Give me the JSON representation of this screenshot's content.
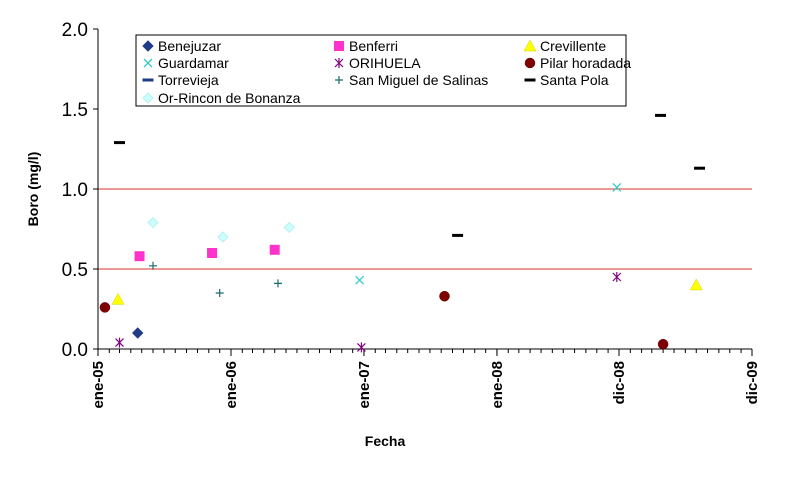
{
  "chart_data": {
    "type": "scatter",
    "title": "",
    "xlabel": "Fecha",
    "ylabel": "Boro (mg/l)",
    "x_axis_type": "date",
    "xlim": [
      "2005-01-01",
      "2009-12-01"
    ],
    "ylim": [
      0,
      2.0
    ],
    "y_ticks": [
      0,
      0.5,
      1.0,
      1.5,
      2.0
    ],
    "y_tick_labels": [
      "0.0",
      "0.5",
      "1.0",
      "1.5",
      "2.0"
    ],
    "x_ticks": [
      "2005-01-01",
      "2006-01-01",
      "2007-01-01",
      "2008-01-01",
      "2008-12-01",
      "2009-12-01"
    ],
    "x_tick_labels": [
      "ene-05",
      "ene-06",
      "ene-07",
      "ene-08",
      "dic-08",
      "dic-09"
    ],
    "grid": false,
    "reference_lines": [
      {
        "y": 1.0,
        "color": "#e03030"
      },
      {
        "y": 0.5,
        "color": "#e03030"
      }
    ],
    "legend_position": "top",
    "series": [
      {
        "name": "Benejuzar",
        "marker": "diamond",
        "color": "#1f3c88",
        "points": [
          {
            "x": "2005-04-20",
            "y": 0.1
          }
        ]
      },
      {
        "name": "Benferri",
        "marker": "square",
        "color": "#ff33cc",
        "points": [
          {
            "x": "2005-04-25",
            "y": 0.58
          },
          {
            "x": "2005-11-10",
            "y": 0.6
          },
          {
            "x": "2006-05-01",
            "y": 0.62
          }
        ]
      },
      {
        "name": "Crevillente",
        "marker": "triangle",
        "color": "#ffff00",
        "points": [
          {
            "x": "2005-02-25",
            "y": 0.31
          },
          {
            "x": "2009-07-01",
            "y": 0.4
          }
        ]
      },
      {
        "name": "Guardamar",
        "marker": "x",
        "color": "#33cccc",
        "points": [
          {
            "x": "2006-12-20",
            "y": 0.43
          },
          {
            "x": "2008-11-25",
            "y": 1.01
          }
        ]
      },
      {
        "name": "ORIHUELA",
        "marker": "star",
        "color": "#800080",
        "points": [
          {
            "x": "2005-03-01",
            "y": 0.04
          },
          {
            "x": "2006-12-25",
            "y": 0.01
          },
          {
            "x": "2008-11-25",
            "y": 0.45
          }
        ]
      },
      {
        "name": "Pilar horadada",
        "marker": "circle",
        "color": "#800000",
        "points": [
          {
            "x": "2005-01-20",
            "y": 0.26
          },
          {
            "x": "2007-08-10",
            "y": 0.33
          },
          {
            "x": "2009-04-01",
            "y": 0.03
          }
        ]
      },
      {
        "name": "Torrevieja",
        "marker": "dash",
        "color": "#1f3c88",
        "points": []
      },
      {
        "name": "San Miguel de Salinas",
        "marker": "plus",
        "color": "#1a6b6b",
        "points": [
          {
            "x": "2005-06-01",
            "y": 0.52
          },
          {
            "x": "2005-12-01",
            "y": 0.35
          },
          {
            "x": "2006-05-10",
            "y": 0.41
          }
        ]
      },
      {
        "name": "Santa Pola",
        "marker": "dash",
        "color": "#000000",
        "points": [
          {
            "x": "2005-03-01",
            "y": 1.29
          },
          {
            "x": "2007-09-15",
            "y": 0.71
          },
          {
            "x": "2009-03-25",
            "y": 1.46
          },
          {
            "x": "2009-07-10",
            "y": 1.13
          }
        ]
      },
      {
        "name": "Or-Rincon de Bonanza",
        "marker": "diamond",
        "color": "#ccffff",
        "points": [
          {
            "x": "2005-06-01",
            "y": 0.79
          },
          {
            "x": "2005-12-10",
            "y": 0.7
          },
          {
            "x": "2006-06-10",
            "y": 0.76
          }
        ]
      }
    ]
  }
}
